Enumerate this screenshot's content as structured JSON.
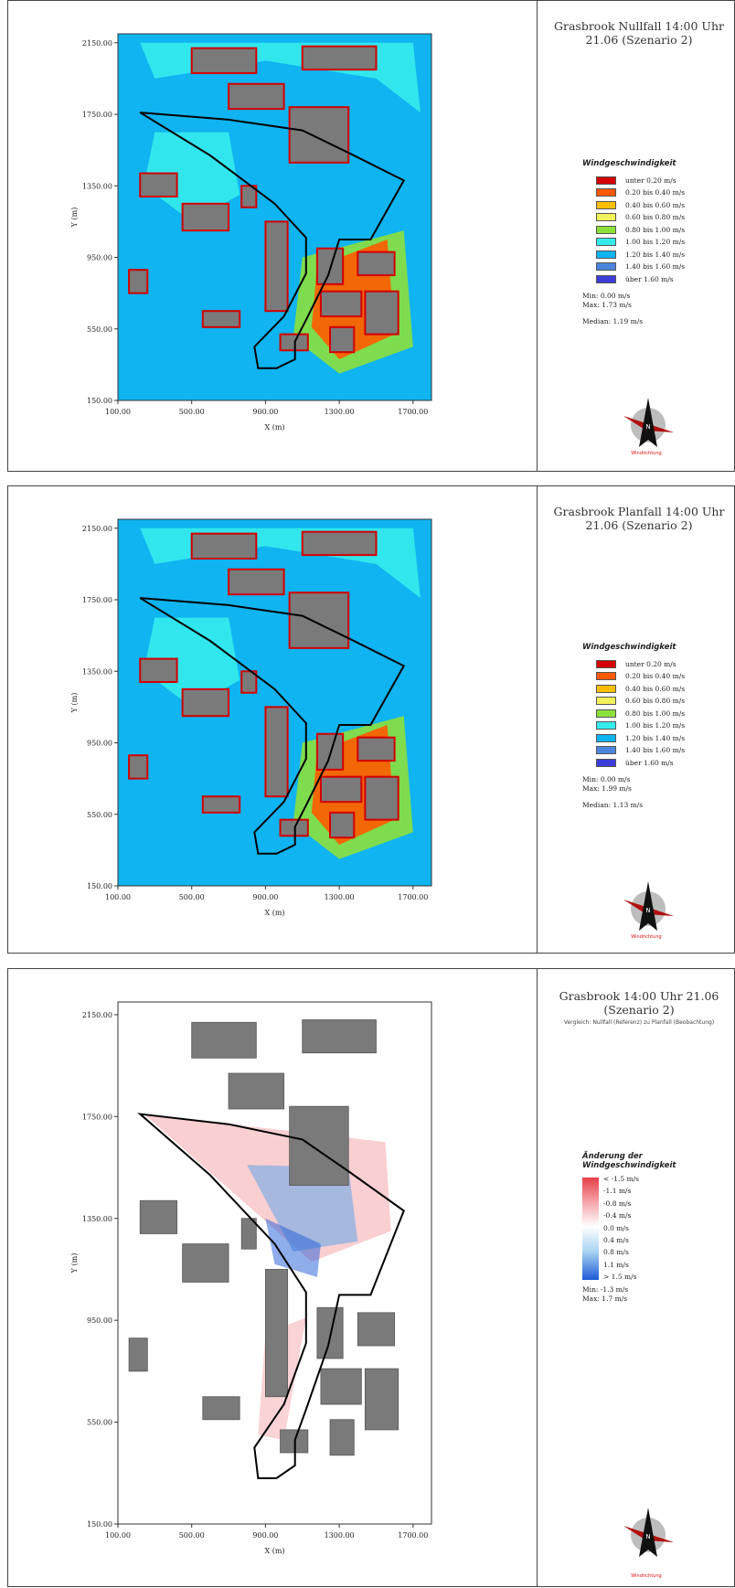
{
  "panels": [
    {
      "title_lines": [
        "Grasbrook Nullfall 14:00 Uhr",
        "21.06 (Szenario 2)"
      ],
      "subtitle": "",
      "legend_title_lines": [
        "Windgeschwindigkeit"
      ],
      "legend_items": [
        {
          "label": "unter 0.20 m/s",
          "color": "#d40000"
        },
        {
          "label": "0.20 bis 0.40 m/s",
          "color": "#ff5a00"
        },
        {
          "label": "0.40 bis 0.60 m/s",
          "color": "#ffbf00"
        },
        {
          "label": "0.60 bis 0.80 m/s",
          "color": "#f2f25a"
        },
        {
          "label": "0.80 bis 1.00 m/s",
          "color": "#8ce03c"
        },
        {
          "label": "1.00 bis 1.20 m/s",
          "color": "#35ecec"
        },
        {
          "label": "1.20 bis 1.40 m/s",
          "color": "#10b4f0"
        },
        {
          "label": "1.40 bis 1.60 m/s",
          "color": "#4c86dc"
        },
        {
          "label": "über 1.60 m/s",
          "color": "#3c3cd8"
        }
      ],
      "stats": [
        "Min: 0.00 m/s",
        "Max: 1.73 m/s",
        "",
        "Median: 1.19 m/s"
      ],
      "wind_label": "Windrichtung"
    },
    {
      "title_lines": [
        "Grasbrook Planfall 14:00 Uhr",
        "21.06 (Szenario 2)"
      ],
      "subtitle": "",
      "legend_title_lines": [
        "Windgeschwindigkeit"
      ],
      "legend_items": [
        {
          "label": "unter 0.20 m/s",
          "color": "#d40000"
        },
        {
          "label": "0.20 bis 0.40 m/s",
          "color": "#ff5a00"
        },
        {
          "label": "0.40 bis 0.60 m/s",
          "color": "#ffbf00"
        },
        {
          "label": "0.60 bis 0.80 m/s",
          "color": "#f2f25a"
        },
        {
          "label": "0.80 bis 1.00 m/s",
          "color": "#8ce03c"
        },
        {
          "label": "1.00 bis 1.20 m/s",
          "color": "#35ecec"
        },
        {
          "label": "1.20 bis 1.40 m/s",
          "color": "#10b4f0"
        },
        {
          "label": "1.40 bis 1.60 m/s",
          "color": "#4c86dc"
        },
        {
          "label": "über 1.60 m/s",
          "color": "#3c3cd8"
        }
      ],
      "stats": [
        "Min: 0.00 m/s",
        "Max: 1.99 m/s",
        "",
        "Median: 1.13 m/s"
      ],
      "wind_label": "Windrichtung"
    },
    {
      "title_lines": [
        "Grasbrook 14:00 Uhr 21.06",
        "(Szenario 2)"
      ],
      "subtitle": "Vergleich: Nullfall (Referenz) zu Planfall (Beobachtung)",
      "legend_title_lines": [
        "Änderung der",
        "Windgeschwindigkeit"
      ],
      "gradient_labels": [
        "< -1.5 m/s",
        "-1.1  m/s",
        "-0.8  m/s",
        "-0.4  m/s",
        "0.0  m/s",
        "0.4  m/s",
        "0.8  m/s",
        "1.1  m/s",
        "> 1.5 m/s"
      ],
      "stats": [
        "Min: -1.3 m/s",
        "Max: 1.7 m/s"
      ],
      "wind_label": "Windrichtung"
    }
  ],
  "axes": {
    "x_label": "X (m)",
    "y_label": "Y (m)",
    "x_ticks": [
      "100.00",
      "500.00",
      "900.00",
      "1300.00",
      "1700.00"
    ],
    "y_ticks": [
      "2150.00",
      "1750.00",
      "1350.00",
      "950.00",
      "550.00",
      "150.00"
    ],
    "x_range": [
      100,
      1800
    ],
    "y_range": [
      150,
      2200
    ]
  },
  "colors": {
    "water_speed": "#10b4f0",
    "building": "#7a7a7a",
    "outline": "#000000",
    "warm": "#e53f4a",
    "cool": "#1f5bd6"
  },
  "compass_letter": "N"
}
